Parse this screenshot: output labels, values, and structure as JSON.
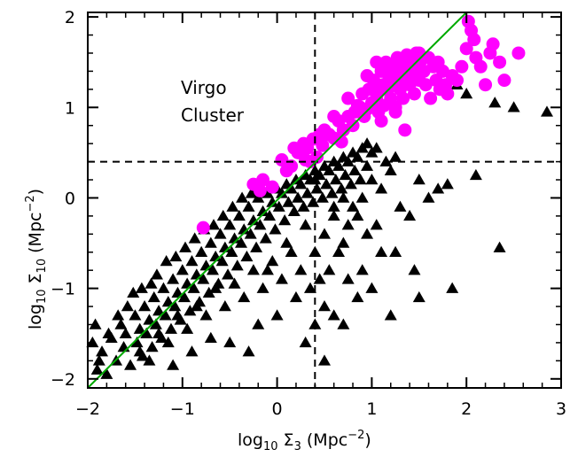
{
  "chart_data": {
    "type": "scatter",
    "xlabel_parts": [
      "log",
      "10",
      " Σ",
      "3",
      " (Mpc",
      "−2",
      ")"
    ],
    "ylabel_parts": [
      "log",
      "10",
      " Σ",
      "10",
      " (Mpc",
      "−2",
      ")"
    ],
    "xlim": [
      -2,
      3
    ],
    "ylim": [
      -2.1,
      2.05
    ],
    "xticks": [
      -2,
      -1,
      0,
      1,
      2,
      3
    ],
    "xtick_labels": [
      "−2",
      "−1",
      "0",
      "1",
      "2",
      "3"
    ],
    "yticks": [
      -2,
      -1,
      0,
      1,
      2
    ],
    "ytick_labels": [
      "−2",
      "−1",
      "0",
      "1",
      "2"
    ],
    "grid": false,
    "annotation_lines": [
      "Virgo",
      "Cluster"
    ],
    "reference_lines": {
      "vertical_dashed_x": 0.4,
      "horizontal_dashed_y": 0.4,
      "one_to_one_line": [
        [
          -2,
          -2.1
        ],
        [
          2,
          2.05
        ]
      ]
    },
    "colors": {
      "virgo": "#ff00ff",
      "field": "#000000",
      "fit_line": "#00aa00"
    },
    "series": [
      {
        "marker": "circle",
        "color": "#ff00ff",
        "points": [
          [
            -0.78,
            -0.33
          ],
          [
            -0.25,
            0.15
          ],
          [
            -0.18,
            0.08
          ],
          [
            -0.05,
            0.12
          ],
          [
            0.05,
            0.42
          ],
          [
            0.15,
            0.35
          ],
          [
            0.22,
            0.5
          ],
          [
            0.28,
            0.6
          ],
          [
            0.32,
            0.55
          ],
          [
            0.38,
            0.65
          ],
          [
            0.42,
            0.45
          ],
          [
            0.48,
            0.58
          ],
          [
            0.55,
            0.7
          ],
          [
            0.6,
            0.66
          ],
          [
            0.65,
            0.85
          ],
          [
            0.7,
            0.75
          ],
          [
            0.75,
            0.9
          ],
          [
            0.8,
            0.8
          ],
          [
            0.85,
            1.02
          ],
          [
            0.88,
            1.0
          ],
          [
            0.9,
            1.15
          ],
          [
            0.92,
            0.9
          ],
          [
            0.95,
            0.98
          ],
          [
            0.97,
            1.2
          ],
          [
            1.0,
            1.05
          ],
          [
            1.02,
            1.3
          ],
          [
            1.05,
            1.1
          ],
          [
            1.07,
            0.95
          ],
          [
            1.08,
            1.18
          ],
          [
            1.1,
            1.4
          ],
          [
            1.12,
            1.25
          ],
          [
            1.13,
            1.02
          ],
          [
            1.15,
            1.5
          ],
          [
            1.17,
            1.2
          ],
          [
            1.18,
            1.35
          ],
          [
            1.2,
            1.1
          ],
          [
            1.22,
            1.45
          ],
          [
            1.24,
            1.28
          ],
          [
            1.25,
            1.0
          ],
          [
            1.27,
            1.55
          ],
          [
            1.28,
            1.38
          ],
          [
            1.3,
            1.2
          ],
          [
            1.32,
            1.48
          ],
          [
            1.33,
            1.1
          ],
          [
            1.35,
            1.3
          ],
          [
            1.37,
            1.58
          ],
          [
            1.38,
            1.42
          ],
          [
            1.4,
            1.25
          ],
          [
            1.42,
            1.5
          ],
          [
            1.43,
            1.35
          ],
          [
            1.45,
            1.15
          ],
          [
            1.47,
            1.6
          ],
          [
            1.48,
            1.45
          ],
          [
            1.5,
            1.3
          ],
          [
            1.52,
            1.52
          ],
          [
            1.55,
            1.4
          ],
          [
            1.57,
            1.25
          ],
          [
            1.6,
            1.55
          ],
          [
            1.62,
            1.1
          ],
          [
            1.65,
            1.45
          ],
          [
            1.68,
            1.3
          ],
          [
            1.7,
            1.5
          ],
          [
            1.72,
            1.2
          ],
          [
            1.75,
            1.4
          ],
          [
            1.78,
            1.25
          ],
          [
            1.8,
            1.15
          ],
          [
            1.85,
            1.35
          ],
          [
            1.9,
            1.3
          ],
          [
            1.95,
            1.45
          ],
          [
            2.0,
            1.65
          ],
          [
            2.02,
            1.95
          ],
          [
            2.05,
            1.85
          ],
          [
            2.08,
            1.75
          ],
          [
            2.1,
            1.55
          ],
          [
            2.15,
            1.45
          ],
          [
            2.2,
            1.25
          ],
          [
            2.25,
            1.6
          ],
          [
            2.28,
            1.7
          ],
          [
            2.35,
            1.5
          ],
          [
            2.4,
            1.3
          ],
          [
            2.55,
            1.6
          ],
          [
            1.35,
            0.75
          ],
          [
            0.6,
            0.9
          ],
          [
            0.75,
            1.1
          ],
          [
            0.5,
            0.75
          ],
          [
            0.95,
            1.35
          ],
          [
            1.05,
            1.5
          ],
          [
            -0.15,
            0.2
          ],
          [
            0.1,
            0.3
          ],
          [
            0.3,
            0.42
          ],
          [
            0.18,
            0.55
          ],
          [
            0.35,
            0.4
          ],
          [
            0.45,
            0.7
          ],
          [
            0.68,
            0.62
          ],
          [
            0.82,
            0.95
          ],
          [
            1.1,
            0.85
          ],
          [
            1.25,
            0.95
          ],
          [
            1.5,
            1.6
          ]
        ]
      },
      {
        "marker": "triangle",
        "color": "#000000",
        "points": [
          [
            -1.9,
            -1.9
          ],
          [
            -1.85,
            -1.7
          ],
          [
            -1.8,
            -1.95
          ],
          [
            -1.75,
            -1.55
          ],
          [
            -1.7,
            -1.8
          ],
          [
            -1.65,
            -1.4
          ],
          [
            -1.62,
            -1.65
          ],
          [
            -1.6,
            -1.5
          ],
          [
            -1.55,
            -1.85
          ],
          [
            -1.5,
            -1.3
          ],
          [
            -1.48,
            -1.6
          ],
          [
            -1.45,
            -1.45
          ],
          [
            -1.42,
            -1.75
          ],
          [
            -1.4,
            -1.2
          ],
          [
            -1.38,
            -1.5
          ],
          [
            -1.35,
            -1.35
          ],
          [
            -1.32,
            -1.65
          ],
          [
            -1.3,
            -1.1
          ],
          [
            -1.28,
            -1.4
          ],
          [
            -1.25,
            -1.25
          ],
          [
            -1.22,
            -1.55
          ],
          [
            -1.2,
            -1.0
          ],
          [
            -1.18,
            -1.3
          ],
          [
            -1.15,
            -1.15
          ],
          [
            -1.12,
            -1.45
          ],
          [
            -1.1,
            -0.9
          ],
          [
            -1.08,
            -1.2
          ],
          [
            -1.05,
            -1.05
          ],
          [
            -1.02,
            -1.35
          ],
          [
            -1.0,
            -0.8
          ],
          [
            -0.98,
            -1.1
          ],
          [
            -0.95,
            -0.95
          ],
          [
            -0.92,
            -1.25
          ],
          [
            -0.9,
            -0.7
          ],
          [
            -0.88,
            -1.0
          ],
          [
            -0.85,
            -0.85
          ],
          [
            -0.82,
            -1.15
          ],
          [
            -0.8,
            -0.6
          ],
          [
            -0.78,
            -0.9
          ],
          [
            -0.75,
            -0.75
          ],
          [
            -0.72,
            -1.05
          ],
          [
            -0.7,
            -0.5
          ],
          [
            -0.68,
            -0.8
          ],
          [
            -0.65,
            -0.65
          ],
          [
            -0.62,
            -0.95
          ],
          [
            -0.6,
            -0.4
          ],
          [
            -0.58,
            -0.7
          ],
          [
            -0.55,
            -0.55
          ],
          [
            -0.52,
            -0.85
          ],
          [
            -0.5,
            -0.3
          ],
          [
            -0.48,
            -0.6
          ],
          [
            -0.45,
            -0.45
          ],
          [
            -0.42,
            -0.75
          ],
          [
            -0.4,
            -0.2
          ],
          [
            -0.38,
            -0.5
          ],
          [
            -0.35,
            -0.35
          ],
          [
            -0.32,
            -0.65
          ],
          [
            -0.3,
            -0.1
          ],
          [
            -0.28,
            -0.4
          ],
          [
            -0.25,
            -0.25
          ],
          [
            -0.22,
            -0.55
          ],
          [
            -0.2,
            0.0
          ],
          [
            -0.18,
            -0.3
          ],
          [
            -0.15,
            -0.15
          ],
          [
            -0.12,
            -0.45
          ],
          [
            -0.1,
            0.05
          ],
          [
            -0.08,
            -0.2
          ],
          [
            -0.05,
            -0.05
          ],
          [
            -0.02,
            -0.35
          ],
          [
            0.0,
            0.1
          ],
          [
            0.02,
            -0.1
          ],
          [
            0.05,
            0.05
          ],
          [
            0.08,
            -0.25
          ],
          [
            0.1,
            0.15
          ],
          [
            0.12,
            -0.05
          ],
          [
            0.15,
            0.1
          ],
          [
            0.18,
            -0.15
          ],
          [
            0.2,
            0.2
          ],
          [
            0.22,
            0.0
          ],
          [
            0.25,
            0.15
          ],
          [
            0.28,
            -0.1
          ],
          [
            0.3,
            0.25
          ],
          [
            0.32,
            0.05
          ],
          [
            0.35,
            0.2
          ],
          [
            0.38,
            -0.05
          ],
          [
            0.4,
            0.3
          ],
          [
            0.42,
            0.1
          ],
          [
            0.45,
            0.25
          ],
          [
            0.48,
            0.0
          ],
          [
            0.5,
            0.35
          ],
          [
            0.52,
            0.15
          ],
          [
            0.55,
            0.3
          ],
          [
            0.58,
            0.05
          ],
          [
            0.6,
            0.4
          ],
          [
            0.62,
            0.2
          ],
          [
            0.65,
            0.35
          ],
          [
            0.68,
            0.1
          ],
          [
            0.7,
            0.45
          ],
          [
            0.72,
            0.25
          ],
          [
            0.75,
            0.4
          ],
          [
            0.78,
            0.15
          ],
          [
            0.8,
            0.5
          ],
          [
            0.82,
            0.3
          ],
          [
            0.85,
            0.45
          ],
          [
            0.88,
            0.2
          ],
          [
            0.9,
            0.55
          ],
          [
            0.95,
            0.35
          ],
          [
            1.0,
            0.5
          ],
          [
            0.3,
            -0.3
          ],
          [
            0.5,
            -0.4
          ],
          [
            0.6,
            -0.2
          ],
          [
            0.7,
            -0.5
          ],
          [
            0.8,
            -0.1
          ],
          [
            0.9,
            0.0
          ],
          [
            1.0,
            0.2
          ],
          [
            1.1,
            0.1
          ],
          [
            1.2,
            0.3
          ],
          [
            1.3,
            -0.1
          ],
          [
            0.4,
            -0.6
          ],
          [
            0.55,
            -0.8
          ],
          [
            0.65,
            -0.6
          ],
          [
            0.75,
            -0.3
          ],
          [
            0.85,
            -0.2
          ],
          [
            0.95,
            -0.4
          ],
          [
            1.05,
            -0.3
          ],
          [
            0.45,
            -0.9
          ],
          [
            0.5,
            -1.2
          ],
          [
            0.35,
            -1.0
          ],
          [
            0.25,
            -0.8
          ],
          [
            0.15,
            -0.6
          ],
          [
            0.05,
            -0.9
          ],
          [
            -0.05,
            -0.7
          ],
          [
            -0.15,
            -1.0
          ],
          [
            -0.25,
            -0.8
          ],
          [
            -0.35,
            -1.1
          ],
          [
            -0.45,
            -0.95
          ],
          [
            -0.55,
            -1.2
          ],
          [
            -0.65,
            -1.0
          ],
          [
            -0.75,
            -1.3
          ],
          [
            -0.85,
            -1.2
          ],
          [
            -0.95,
            -1.45
          ],
          [
            -1.05,
            -1.3
          ],
          [
            -1.15,
            -1.6
          ],
          [
            -1.25,
            -1.5
          ],
          [
            -1.35,
            -1.8
          ],
          [
            -1.45,
            -1.7
          ],
          [
            -0.3,
            -1.7
          ],
          [
            -0.5,
            -1.6
          ],
          [
            -0.7,
            -1.55
          ],
          [
            -0.9,
            -1.7
          ],
          [
            -1.1,
            -1.85
          ],
          [
            -0.2,
            -1.4
          ],
          [
            0.0,
            -1.3
          ],
          [
            0.2,
            -1.1
          ],
          [
            0.4,
            -1.4
          ],
          [
            0.6,
            -1.3
          ],
          [
            1.0,
            -1.0
          ],
          [
            1.2,
            -1.3
          ],
          [
            1.5,
            -1.1
          ],
          [
            1.85,
            -1.0
          ],
          [
            2.35,
            -0.55
          ],
          [
            2.1,
            0.25
          ],
          [
            1.5,
            0.2
          ],
          [
            1.7,
            0.1
          ],
          [
            1.8,
            0.15
          ],
          [
            1.4,
            -0.2
          ],
          [
            1.6,
            0.0
          ],
          [
            1.9,
            1.25
          ],
          [
            2.0,
            1.15
          ],
          [
            2.5,
            1.0
          ],
          [
            2.85,
            0.95
          ],
          [
            2.3,
            1.05
          ],
          [
            1.25,
            -0.6
          ],
          [
            1.45,
            -0.8
          ],
          [
            0.75,
            -0.9
          ],
          [
            0.85,
            -1.1
          ],
          [
            -1.95,
            -1.6
          ],
          [
            -1.92,
            -1.4
          ],
          [
            -1.88,
            -1.8
          ],
          [
            -1.78,
            -1.5
          ],
          [
            -1.68,
            -1.3
          ],
          [
            -1.58,
            -1.2
          ],
          [
            -1.52,
            -1.05
          ],
          [
            -1.43,
            -1.0
          ],
          [
            -1.33,
            -0.95
          ],
          [
            -1.27,
            -0.85
          ],
          [
            -1.17,
            -0.7
          ],
          [
            -1.07,
            -0.65
          ],
          [
            -0.97,
            -0.55
          ],
          [
            -0.87,
            -0.45
          ],
          [
            -0.77,
            -0.35
          ],
          [
            -0.67,
            -0.3
          ],
          [
            -0.57,
            -0.2
          ],
          [
            -0.47,
            -0.1
          ],
          [
            -0.37,
            0.0
          ],
          [
            -0.27,
            0.05
          ],
          [
            -0.1,
            -0.8
          ],
          [
            0.1,
            -0.5
          ],
          [
            0.3,
            -1.6
          ],
          [
            0.5,
            -1.8
          ],
          [
            0.7,
            -1.4
          ],
          [
            0.9,
            -0.8
          ],
          [
            1.1,
            -0.6
          ],
          [
            1.15,
            0.4
          ],
          [
            1.25,
            0.45
          ],
          [
            0.95,
            0.6
          ],
          [
            1.05,
            0.55
          ],
          [
            0.7,
            0.0
          ],
          [
            0.6,
            -0.1
          ],
          [
            0.4,
            0.2
          ]
        ]
      }
    ]
  }
}
